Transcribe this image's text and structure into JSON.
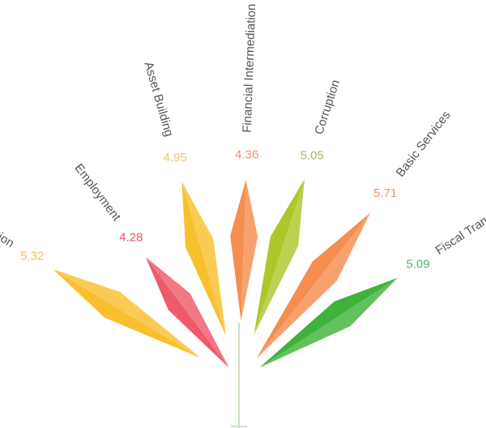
{
  "chart_data": {
    "type": "bar",
    "style": "radial fan of leaf-shaped petals",
    "title": "",
    "categories": [
      "Education",
      "Employment",
      "Asset Building",
      "Financial Intermediation",
      "Corruption",
      "Basic Services",
      "Fiscal Transfers"
    ],
    "values": [
      5.32,
      4.28,
      4.95,
      4.36,
      5.05,
      5.71,
      5.09
    ],
    "value_labels": [
      "5.32",
      "4.28",
      "4.95",
      "4.36",
      "5.05",
      "5.71",
      "5.09"
    ],
    "colors": [
      "#F9C02E",
      "#EE5A6A",
      "#F9C02E",
      "#F58E4E",
      "#AFC62A",
      "#F58E4E",
      "#3FB23A"
    ],
    "label_colors": [
      "#EDBE6B",
      "#E7566A",
      "#EFC36F",
      "#F0906B",
      "#A9B56A",
      "#F0906B",
      "#5AAF6E"
    ],
    "stem_color": "#C9E0C0",
    "legend": "none",
    "grid": false
  }
}
